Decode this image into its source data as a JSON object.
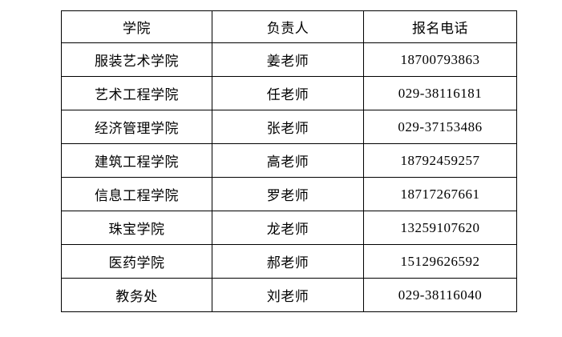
{
  "table": {
    "columns": [
      "学院",
      "负责人",
      "报名电话"
    ],
    "rows": [
      [
        "服装艺术学院",
        "姜老师",
        "18700793863"
      ],
      [
        "艺术工程学院",
        "任老师",
        "029-38116181"
      ],
      [
        "经济管理学院",
        "张老师",
        "029-37153486"
      ],
      [
        "建筑工程学院",
        "高老师",
        "18792459257"
      ],
      [
        "信息工程学院",
        "罗老师",
        "18717267661"
      ],
      [
        "珠宝学院",
        "龙老师",
        "13259107620"
      ],
      [
        "医药学院",
        "郝老师",
        "15129626592"
      ],
      [
        "教务处",
        "刘老师",
        "029-38116040"
      ]
    ],
    "colors": {
      "text": "#000000",
      "border": "#000000",
      "background": "#ffffff"
    }
  }
}
